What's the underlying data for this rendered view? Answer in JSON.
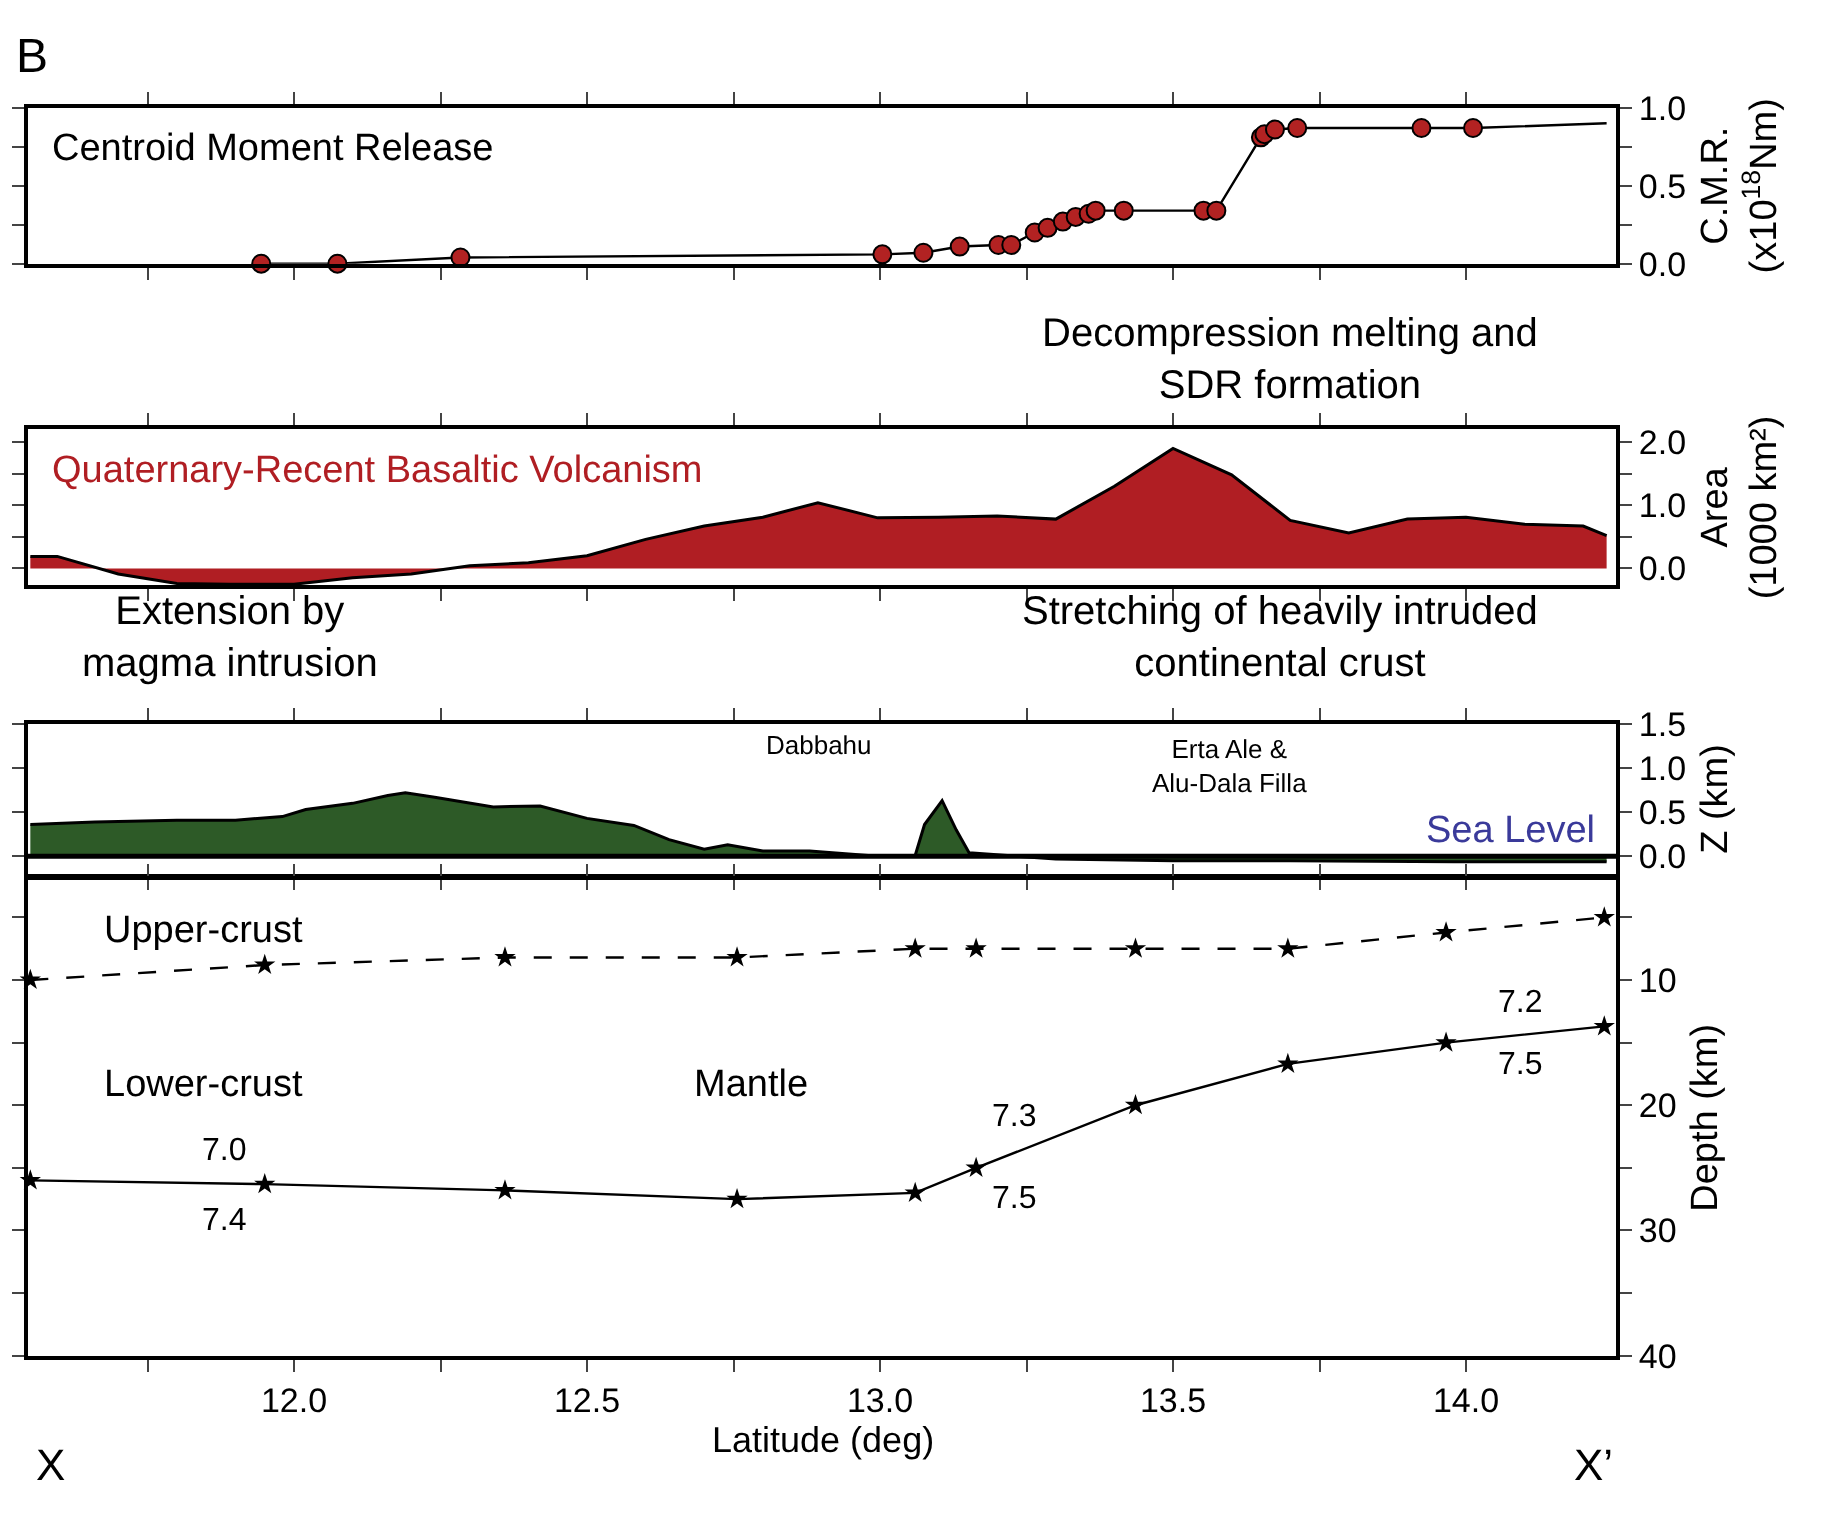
{
  "chart_data": [
    {
      "type": "line",
      "title": "Centroid Moment Release",
      "ylabel": "C.M.R.\n(x10$^{18}$Nm)",
      "annotations": [
        "B"
      ],
      "xlim": [
        11.546,
        14.256
      ],
      "xticks": [
        {
          "value": 11.75,
          "label": null
        },
        {
          "value": 12.0,
          "label": null
        },
        {
          "value": 12.25,
          "label": null
        },
        {
          "value": 12.5,
          "label": null
        },
        {
          "value": 12.75,
          "label": null
        },
        {
          "value": 13.0,
          "label": null
        },
        {
          "value": 13.25,
          "label": null
        },
        {
          "value": 13.5,
          "label": null
        },
        {
          "value": 13.75,
          "label": null
        },
        {
          "value": 14.0,
          "label": null
        }
      ],
      "ylim": [
        0,
        1.0
      ],
      "yticks": [
        {
          "value": 0,
          "label": "0.0"
        },
        {
          "value": 0.25,
          "label": null
        },
        {
          "value": 0.5,
          "label": "0.5"
        },
        {
          "value": 0.75,
          "label": null
        },
        {
          "value": 1.0,
          "label": "1.0"
        }
      ],
      "tick_labels": "y",
      "grid": false,
      "series": [
        {
          "type": "line",
          "color": "#000000",
          "marker": "none",
          "x": [
            11.944,
            12.074,
            12.284,
            13.004,
            13.074,
            13.136,
            13.202,
            13.224,
            13.264,
            13.286,
            13.312,
            13.334,
            13.356,
            13.368,
            13.416,
            13.552,
            13.574,
            13.65,
            13.656,
            13.674,
            13.712,
            13.924,
            14.012,
            14.24
          ],
          "values": [
            0.0,
            0.0,
            0.04,
            0.06,
            0.07,
            0.11,
            0.12,
            0.12,
            0.2,
            0.23,
            0.27,
            0.3,
            0.32,
            0.34,
            0.34,
            0.34,
            0.34,
            0.81,
            0.83,
            0.86,
            0.87,
            0.87,
            0.87,
            0.9
          ]
        },
        {
          "type": "scatter",
          "color": "#b22222",
          "marker": "circle",
          "x": [
            11.944,
            12.074,
            12.284,
            13.004,
            13.074,
            13.136,
            13.202,
            13.224,
            13.264,
            13.286,
            13.312,
            13.334,
            13.356,
            13.368,
            13.416,
            13.552,
            13.574,
            13.65,
            13.656,
            13.674,
            13.712,
            13.924,
            14.012
          ],
          "values": [
            0.0,
            0.0,
            0.04,
            0.06,
            0.07,
            0.11,
            0.12,
            0.12,
            0.2,
            0.23,
            0.27,
            0.3,
            0.32,
            0.34,
            0.34,
            0.34,
            0.34,
            0.81,
            0.83,
            0.86,
            0.87,
            0.87,
            0.87
          ]
        }
      ]
    },
    {
      "type": "area",
      "title": "Quaternary-Recent Basaltic Volcanism",
      "ylabel": "Area\n(1000 km²)",
      "annotations": [
        "Decompression melting and\nSDR formation"
      ],
      "xlim": [
        11.546,
        14.256
      ],
      "xticks": [
        {
          "value": 11.75,
          "label": null
        },
        {
          "value": 12.0,
          "label": null
        },
        {
          "value": 12.25,
          "label": null
        },
        {
          "value": 12.5,
          "label": null
        },
        {
          "value": 12.75,
          "label": null
        },
        {
          "value": 13.0,
          "label": null
        },
        {
          "value": 13.25,
          "label": null
        },
        {
          "value": 13.5,
          "label": null
        },
        {
          "value": 13.75,
          "label": null
        },
        {
          "value": 14.0,
          "label": null
        }
      ],
      "ylim": [
        -0.27,
        2.2
      ],
      "yticks": [
        {
          "value": 0,
          "label": "0.0"
        },
        {
          "value": 0.5,
          "label": null
        },
        {
          "value": 1.0,
          "label": "1.0"
        },
        {
          "value": 1.5,
          "label": null
        },
        {
          "value": 2.0,
          "label": "2.0"
        }
      ],
      "tick_labels": "y",
      "grid": false,
      "series": [
        {
          "color": "#b01e23",
          "x": [
            11.55,
            11.596,
            11.7,
            11.8,
            11.89,
            12.0,
            12.1,
            12.2,
            12.3,
            12.4,
            12.5,
            12.6,
            12.7,
            12.8,
            12.894,
            12.996,
            13.1,
            13.2,
            13.3,
            13.4,
            13.5,
            13.6,
            13.7,
            13.8,
            13.9,
            14.0,
            14.1,
            14.2,
            14.24
          ],
          "values": [
            0.19,
            0.19,
            -0.09,
            -0.24,
            -0.25,
            -0.25,
            -0.15,
            -0.09,
            0.04,
            0.09,
            0.2,
            0.46,
            0.67,
            0.81,
            1.04,
            0.8,
            0.81,
            0.83,
            0.78,
            1.3,
            1.9,
            1.48,
            0.76,
            0.56,
            0.78,
            0.81,
            0.7,
            0.67,
            0.52
          ]
        }
      ]
    },
    {
      "type": "area",
      "ylabel": "Z (km)",
      "annotations": [
        "Extension by\nmagma intrusion",
        "Stretching of heavily intruded\ncontinental crust",
        "Dabbahu",
        "Erta Ale &\nAlu-Dala Filla"
      ],
      "xlim": [
        11.546,
        14.256
      ],
      "xticks": [
        {
          "value": 11.75,
          "label": null
        },
        {
          "value": 12.0,
          "label": null
        },
        {
          "value": 12.25,
          "label": null
        },
        {
          "value": 12.5,
          "label": null
        },
        {
          "value": 12.75,
          "label": null
        },
        {
          "value": 13.0,
          "label": null
        },
        {
          "value": 13.25,
          "label": null
        },
        {
          "value": 13.5,
          "label": null
        },
        {
          "value": 13.75,
          "label": null
        },
        {
          "value": 14.0,
          "label": null
        }
      ],
      "ylim": [
        -0.2,
        1.5
      ],
      "yticks": [
        {
          "value": 0,
          "label": "0.0"
        },
        0.5,
        {
          "value": 1.0,
          "label": "1.0"
        },
        1.5
      ],
      "tick_labels": "y",
      "grid": false,
      "ref_lines": [
        {
          "axis": "y",
          "value": 0,
          "label": "Sea Level",
          "color": "#000000"
        }
      ],
      "series": [
        {
          "color": "#2d5a27",
          "x": [
            11.55,
            11.66,
            11.8,
            11.9,
            11.98,
            12.02,
            12.1,
            12.16,
            12.19,
            12.24,
            12.34,
            12.42,
            12.5,
            12.58,
            12.64,
            12.7,
            12.74,
            12.8,
            12.88,
            12.98,
            13.06,
            13.076,
            13.106,
            13.13,
            13.152,
            13.3,
            13.5,
            13.7,
            13.98,
            14.24
          ],
          "values": [
            0.36,
            0.39,
            0.41,
            0.41,
            0.45,
            0.53,
            0.6,
            0.69,
            0.72,
            0.67,
            0.56,
            0.57,
            0.43,
            0.35,
            0.19,
            0.08,
            0.13,
            0.06,
            0.06,
            0.01,
            0.01,
            0.36,
            0.63,
            0.3,
            0.04,
            -0.03,
            -0.05,
            -0.05,
            -0.06,
            -0.06
          ]
        }
      ]
    },
    {
      "type": "line",
      "xlabel": "Latitude (deg)",
      "ylabel": "Depth (km)",
      "annotations": [
        "X",
        "X’",
        "Upper-crust",
        "Lower-crust",
        "Mantle",
        "7.0",
        "7.4",
        "7.3",
        "7.5",
        "7.2",
        "7.5"
      ],
      "xlim": [
        11.546,
        14.256
      ],
      "xticks": [
        {
          "value": 11.75,
          "label": null
        },
        {
          "value": 12.0,
          "label": "12.0"
        },
        {
          "value": 12.25,
          "label": null
        },
        {
          "value": 12.5,
          "label": "12.5"
        },
        {
          "value": 12.75,
          "label": null
        },
        {
          "value": 13.0,
          "label": "13.0"
        },
        {
          "value": 13.25,
          "label": null
        },
        {
          "value": 13.5,
          "label": "13.5"
        },
        {
          "value": 13.75,
          "label": null
        },
        {
          "value": 14.0,
          "label": "14.0"
        }
      ],
      "ylim": [
        40,
        2
      ],
      "yticks": [
        {
          "value": 5,
          "label": null
        },
        10,
        {
          "value": 15,
          "label": null
        },
        20,
        {
          "value": 25,
          "label": null
        },
        30,
        {
          "value": 35,
          "label": null
        },
        40
      ],
      "grid": false,
      "marker": "star",
      "series": [
        {
          "color": "#000000",
          "line_style": "dashed",
          "x": [
            11.55,
            11.95,
            12.36,
            12.756,
            13.06,
            13.164,
            13.436,
            13.696,
            13.966,
            14.236
          ],
          "values": [
            10.0,
            8.8,
            8.2,
            8.2,
            7.5,
            7.5,
            7.5,
            7.5,
            6.2,
            5.0
          ]
        },
        {
          "color": "#000000",
          "line_style": "solid",
          "x": [
            11.55,
            11.95,
            12.36,
            12.756,
            13.06,
            13.164,
            13.436,
            13.696,
            13.966,
            14.236
          ],
          "values": [
            26.0,
            26.3,
            26.8,
            27.5,
            27.0,
            25.0,
            20.0,
            16.7,
            15.0,
            13.7
          ]
        }
      ]
    }
  ]
}
